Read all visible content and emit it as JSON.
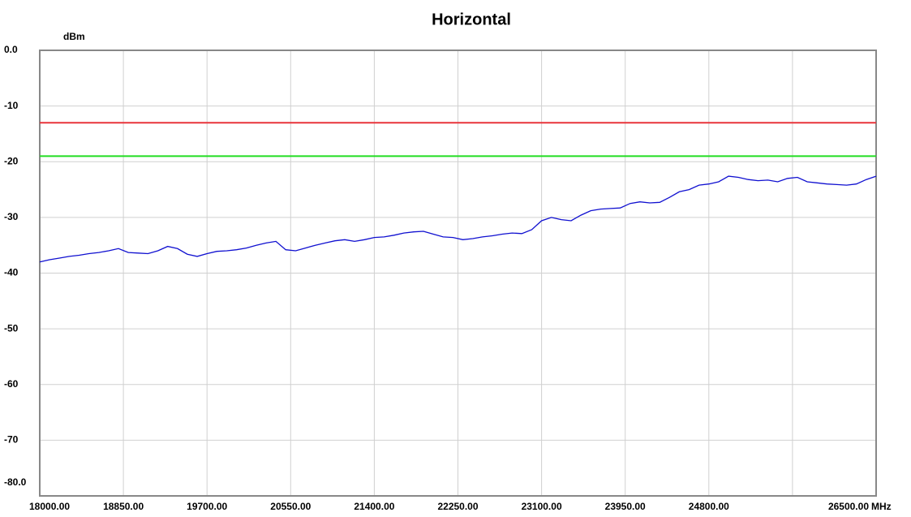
{
  "chart_data": {
    "type": "line",
    "title": "Horizontal",
    "y_unit": "dBm",
    "x_unit": "MHz",
    "xlim": [
      18000,
      26500
    ],
    "ylim": [
      -80,
      0
    ],
    "xticks": [
      {
        "value": 18000,
        "label": "18000.00"
      },
      {
        "value": 18850,
        "label": "18850.00"
      },
      {
        "value": 19700,
        "label": "19700.00"
      },
      {
        "value": 20550,
        "label": "20550.00"
      },
      {
        "value": 21400,
        "label": "21400.00"
      },
      {
        "value": 22250,
        "label": "22250.00"
      },
      {
        "value": 23100,
        "label": "23100.00"
      },
      {
        "value": 23950,
        "label": "23950.00"
      },
      {
        "value": 24800,
        "label": "24800.00"
      },
      {
        "value": 25650,
        "label": null
      },
      {
        "value": 26500,
        "label": "26500.00"
      }
    ],
    "yticks": [
      {
        "value": 0,
        "label": "0.0"
      },
      -10,
      -20,
      -30,
      -40,
      -50,
      -60,
      -70,
      {
        "value": -80,
        "label": "-80.0"
      }
    ],
    "grid": true,
    "hlines": [
      {
        "value": -13,
        "color": "#e8343a"
      },
      {
        "value": -19,
        "color": "#22dd22"
      }
    ],
    "series": [
      {
        "color": "#1010d0",
        "x": [
          18000,
          18100,
          18200,
          18300,
          18400,
          18500,
          18600,
          18700,
          18800,
          18900,
          19000,
          19100,
          19200,
          19300,
          19400,
          19500,
          19600,
          19700,
          19800,
          19900,
          20000,
          20100,
          20200,
          20300,
          20400,
          20500,
          20600,
          20700,
          20800,
          20900,
          21000,
          21100,
          21200,
          21300,
          21400,
          21500,
          21600,
          21700,
          21800,
          21900,
          22000,
          22100,
          22200,
          22300,
          22400,
          22500,
          22600,
          22700,
          22800,
          22900,
          23000,
          23100,
          23200,
          23300,
          23400,
          23500,
          23600,
          23700,
          23800,
          23900,
          24000,
          24100,
          24200,
          24300,
          24400,
          24500,
          24600,
          24700,
          24800,
          24900,
          25000,
          25100,
          25200,
          25300,
          25400,
          25500,
          25600,
          25700,
          25800,
          25900,
          26000,
          26100,
          26200,
          26300,
          26400,
          26500
        ],
        "values": [
          -38.0,
          -37.6,
          -37.3,
          -37.0,
          -36.8,
          -36.5,
          -36.3,
          -36.0,
          -35.6,
          -36.3,
          -36.4,
          -36.5,
          -36.0,
          -35.2,
          -35.6,
          -36.6,
          -37.0,
          -36.5,
          -36.1,
          -36.0,
          -35.8,
          -35.5,
          -35.0,
          -34.6,
          -34.3,
          -35.8,
          -36.0,
          -35.5,
          -35.0,
          -34.6,
          -34.2,
          -34.0,
          -34.3,
          -34.0,
          -33.6,
          -33.5,
          -33.2,
          -32.8,
          -32.6,
          -32.5,
          -33.0,
          -33.5,
          -33.6,
          -34.0,
          -33.8,
          -33.5,
          -33.3,
          -33.0,
          -32.8,
          -32.9,
          -32.2,
          -30.6,
          -30.0,
          -30.4,
          -30.6,
          -29.6,
          -28.8,
          -28.5,
          -28.4,
          -28.3,
          -27.5,
          -27.2,
          -27.4,
          -27.3,
          -26.4,
          -25.4,
          -25.0,
          -24.2,
          -24.0,
          -23.6,
          -22.6,
          -22.8,
          -23.2,
          -23.4,
          -23.3,
          -23.6,
          -23.0,
          -22.8,
          -23.6,
          -23.8,
          -24.0,
          -24.1,
          -24.2,
          -24.0,
          -23.2,
          -22.6
        ]
      }
    ]
  }
}
